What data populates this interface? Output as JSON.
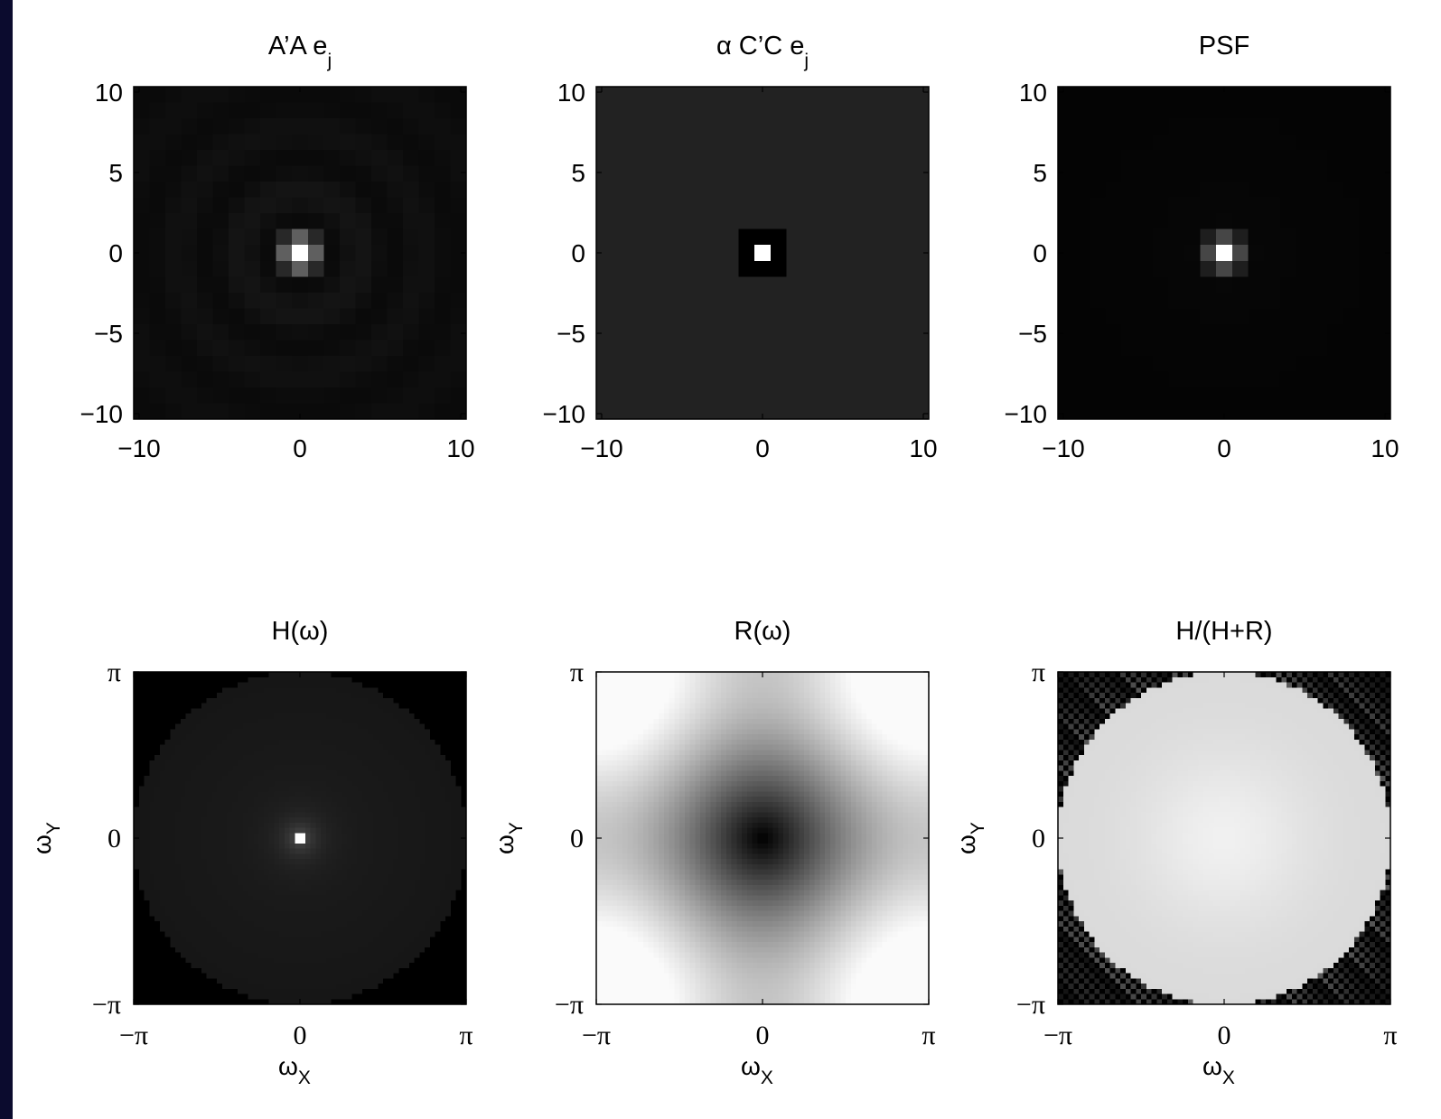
{
  "chart_data": [
    {
      "type": "heatmap",
      "title": "A’A e",
      "title_subscript": "j",
      "xlim": [
        -10,
        10
      ],
      "ylim": [
        -10,
        10
      ],
      "xticks": [
        "−10",
        "0",
        "10"
      ],
      "yticks": [
        "10",
        "5",
        "0",
        "−5",
        "−10"
      ],
      "xlabel": "",
      "ylabel": "",
      "colormap": "gray",
      "pattern": "AtA_impulse"
    },
    {
      "type": "heatmap",
      "title": "α C’C e",
      "title_subscript": "j",
      "xlim": [
        -10,
        10
      ],
      "ylim": [
        -10,
        10
      ],
      "xticks": [
        "−10",
        "0",
        "10"
      ],
      "yticks": [
        "10",
        "5",
        "0",
        "−5",
        "−10"
      ],
      "xlabel": "",
      "ylabel": "",
      "colormap": "gray",
      "pattern": "CtC_impulse"
    },
    {
      "type": "heatmap",
      "title": "PSF",
      "title_subscript": "",
      "xlim": [
        -10,
        10
      ],
      "ylim": [
        -10,
        10
      ],
      "xticks": [
        "−10",
        "0",
        "10"
      ],
      "yticks": [
        "10",
        "5",
        "0",
        "−5",
        "−10"
      ],
      "xlabel": "",
      "ylabel": "",
      "colormap": "gray",
      "pattern": "psf"
    },
    {
      "type": "heatmap",
      "title": "H(ω)",
      "title_subscript": "",
      "xlim": [
        "−π",
        "π"
      ],
      "ylim": [
        "−π",
        "π"
      ],
      "xticks": [
        "−π",
        "0",
        "π"
      ],
      "yticks": [
        "π",
        "0",
        "−π"
      ],
      "xlabel": "ω",
      "xlabel_subscript": "X",
      "ylabel": "ω",
      "ylabel_subscript": "Y",
      "colormap": "gray",
      "pattern": "H_freq"
    },
    {
      "type": "heatmap",
      "title": "R(ω)",
      "title_subscript": "",
      "xlim": [
        "−π",
        "π"
      ],
      "ylim": [
        "−π",
        "π"
      ],
      "xticks": [
        "−π",
        "0",
        "π"
      ],
      "yticks": [
        "π",
        "0",
        "−π"
      ],
      "xlabel": "ω",
      "xlabel_subscript": "X",
      "ylabel": "ω",
      "ylabel_subscript": "Y",
      "colormap": "gray",
      "pattern": "R_freq"
    },
    {
      "type": "heatmap",
      "title": "H/(H+R)",
      "title_subscript": "",
      "xlim": [
        "−π",
        "π"
      ],
      "ylim": [
        "−π",
        "π"
      ],
      "xticks": [
        "−π",
        "0",
        "π"
      ],
      "yticks": [
        "π",
        "0",
        "−π"
      ],
      "xlabel": "ω",
      "xlabel_subscript": "X",
      "ylabel": "ω",
      "ylabel_subscript": "Y",
      "colormap": "gray",
      "pattern": "HHR_freq"
    }
  ],
  "colors": {
    "left_strip": "#0b0b2e",
    "background": "#ffffff",
    "axis": "#000000"
  }
}
